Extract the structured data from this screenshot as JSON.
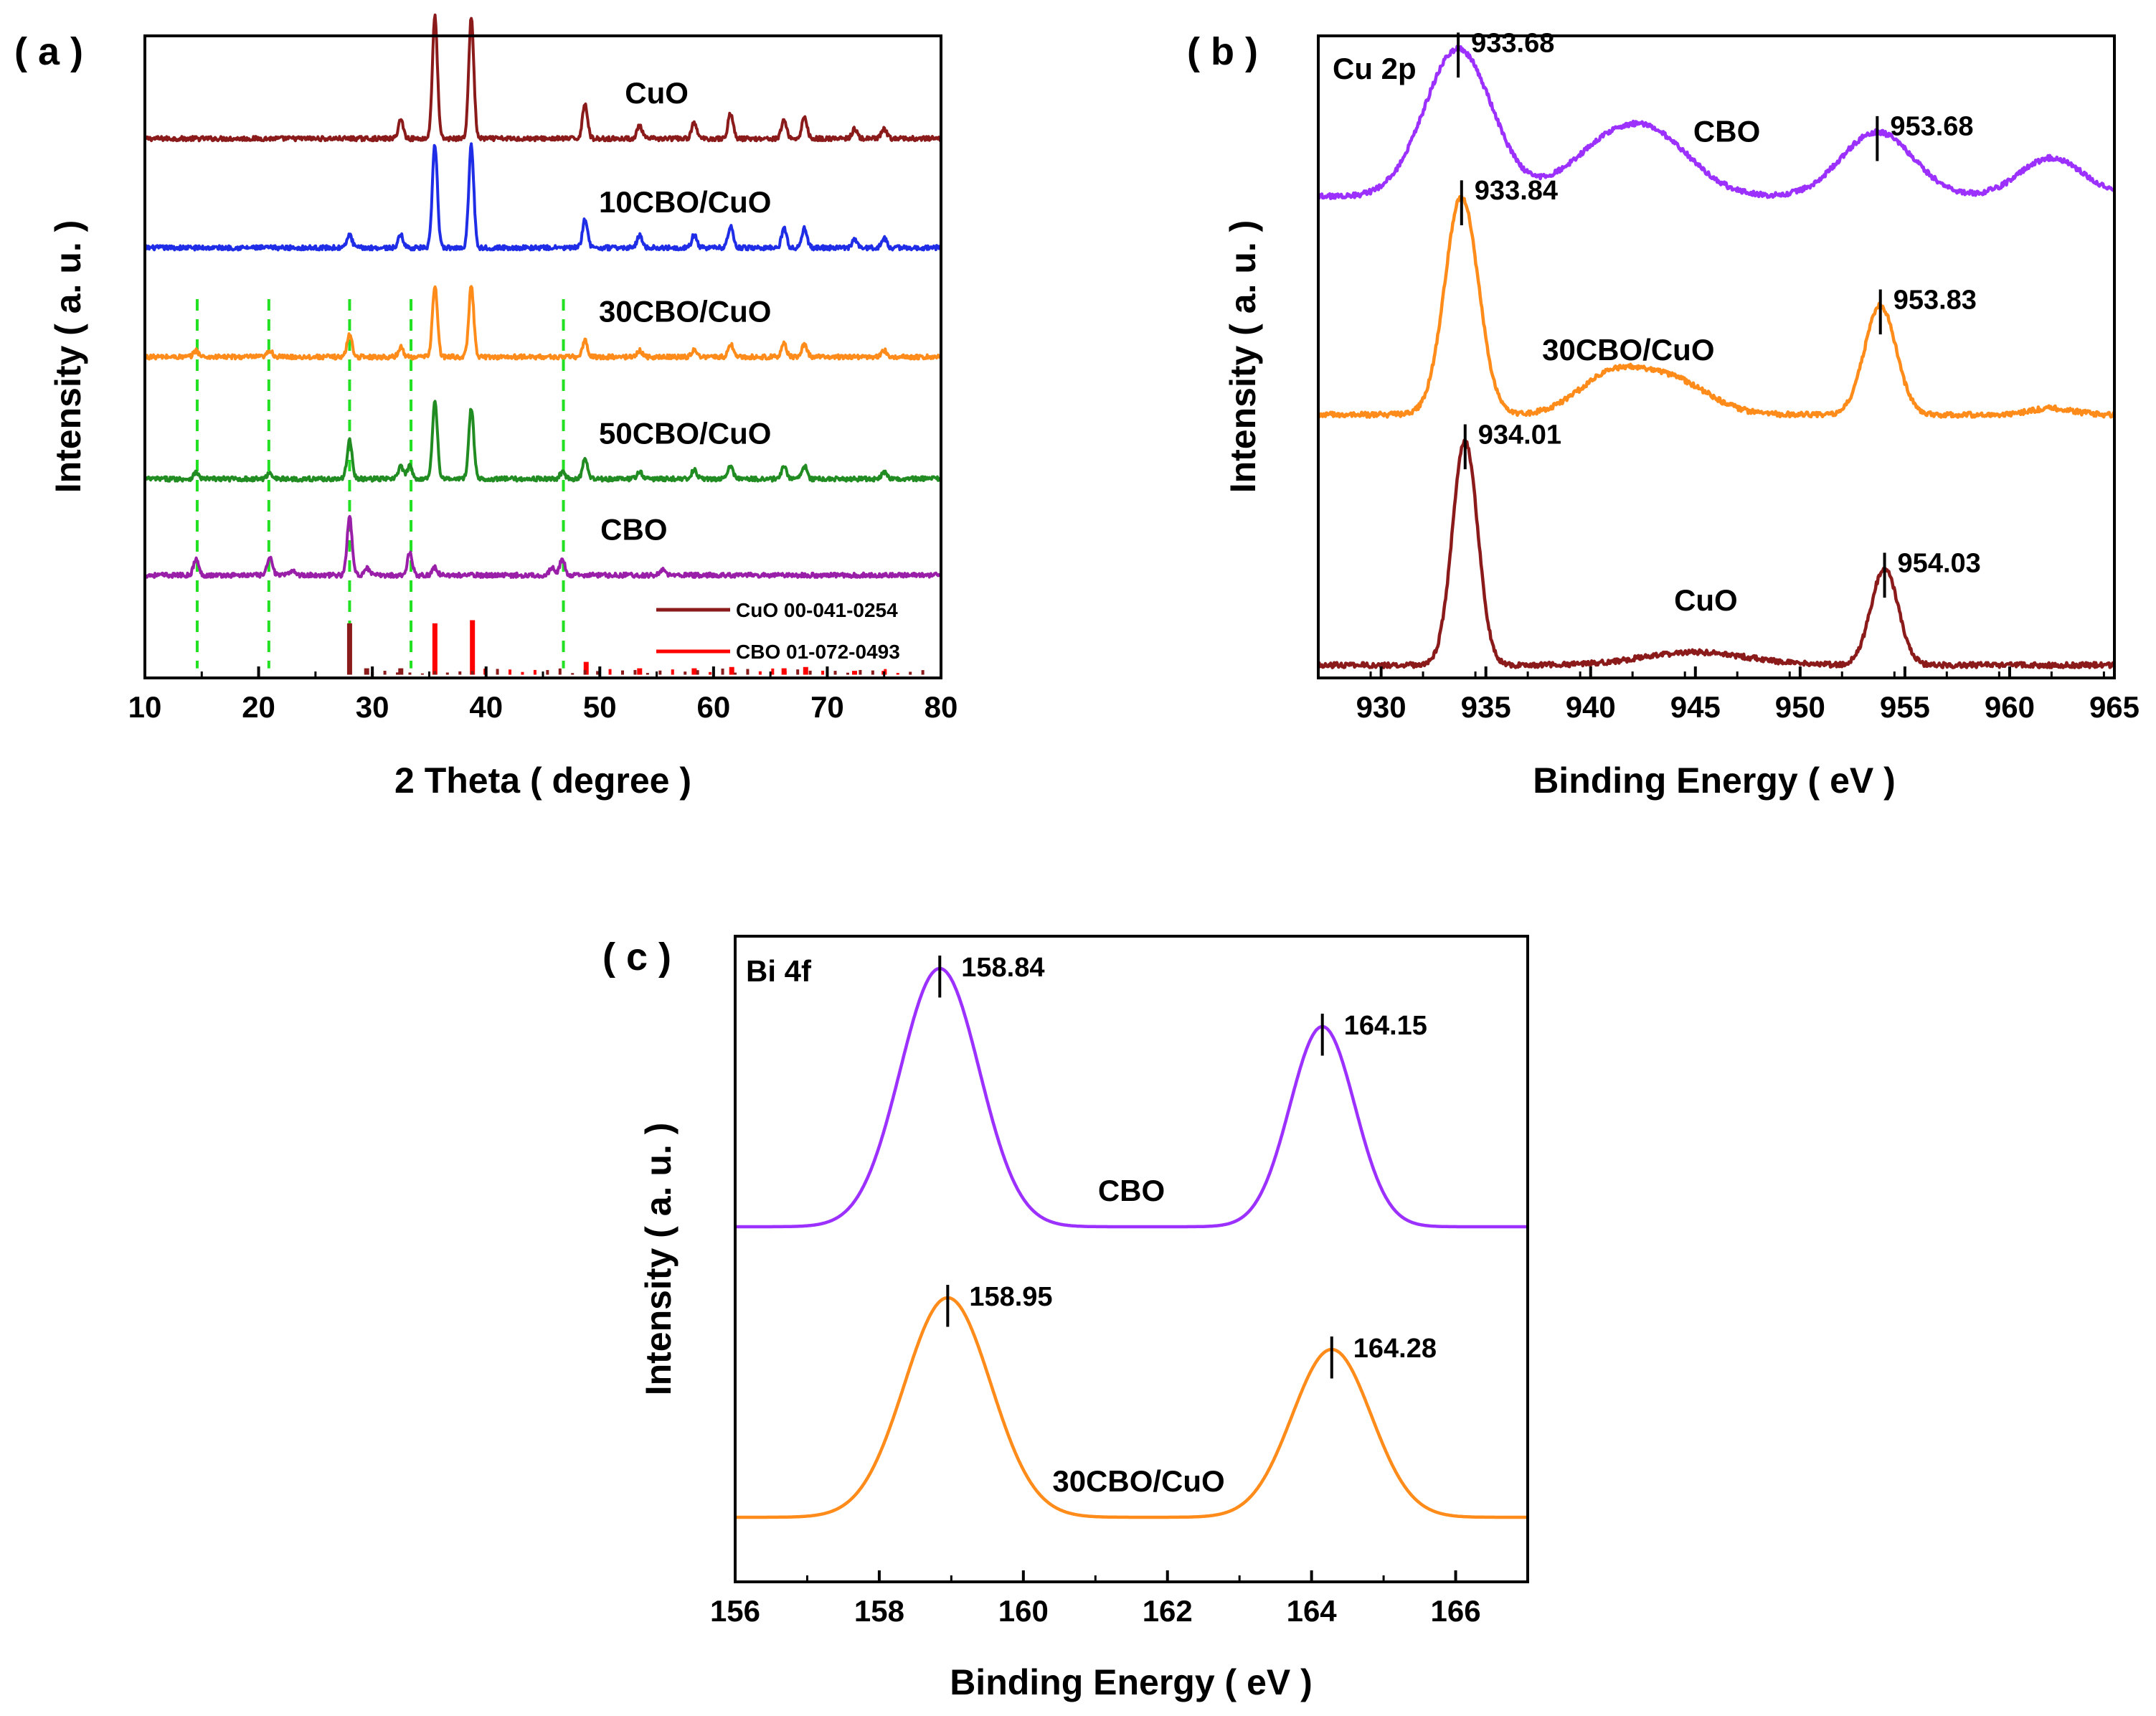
{
  "chart_data": [
    {
      "id": "a",
      "panel_label": "( a )",
      "type": "line",
      "subtype": "xrd_stacked",
      "xlabel": "2 Theta ( degree )",
      "ylabel": "Intensity ( a. u. )",
      "xlim": [
        10,
        80
      ],
      "xticks": [
        10,
        20,
        30,
        40,
        50,
        60,
        70,
        80
      ],
      "series": [
        {
          "name": "CuO",
          "color": "#8b1a1a",
          "offset": 0.84,
          "label_x": 55,
          "peaks": [
            [
              32.5,
              0.03
            ],
            [
              35.5,
              0.19
            ],
            [
              38.7,
              0.19
            ],
            [
              48.7,
              0.055
            ],
            [
              53.5,
              0.02
            ],
            [
              58.3,
              0.025
            ],
            [
              61.5,
              0.04
            ],
            [
              66.2,
              0.03
            ],
            [
              68.0,
              0.035
            ],
            [
              72.4,
              0.015
            ],
            [
              75.0,
              0.015
            ]
          ]
        },
        {
          "name": "10CBO/CuO",
          "color": "#1f2de6",
          "offset": 0.67,
          "label_x": 57.5,
          "peaks": [
            [
              28.0,
              0.02
            ],
            [
              32.5,
              0.02
            ],
            [
              35.5,
              0.16
            ],
            [
              38.7,
              0.16
            ],
            [
              48.7,
              0.045
            ],
            [
              53.5,
              0.02
            ],
            [
              58.3,
              0.02
            ],
            [
              61.5,
              0.035
            ],
            [
              66.2,
              0.03
            ],
            [
              68.0,
              0.03
            ],
            [
              72.4,
              0.012
            ],
            [
              75.0,
              0.015
            ]
          ]
        },
        {
          "name": "30CBO/CuO",
          "color": "#ff8c1a",
          "offset": 0.5,
          "label_x": 57.5,
          "peaks": [
            [
              14.5,
              0.01
            ],
            [
              21.0,
              0.01
            ],
            [
              28.0,
              0.035
            ],
            [
              32.5,
              0.015
            ],
            [
              35.5,
              0.11
            ],
            [
              38.7,
              0.11
            ],
            [
              48.7,
              0.025
            ],
            [
              53.5,
              0.01
            ],
            [
              58.3,
              0.012
            ],
            [
              61.5,
              0.02
            ],
            [
              66.2,
              0.02
            ],
            [
              68.0,
              0.02
            ],
            [
              75.0,
              0.01
            ]
          ]
        },
        {
          "name": "50CBO/CuO",
          "color": "#218c21",
          "offset": 0.31,
          "label_x": 57.5,
          "peaks": [
            [
              14.5,
              0.01
            ],
            [
              21.0,
              0.01
            ],
            [
              28.0,
              0.06
            ],
            [
              32.5,
              0.02
            ],
            [
              33.3,
              0.02
            ],
            [
              35.5,
              0.12
            ],
            [
              38.7,
              0.11
            ],
            [
              46.7,
              0.01
            ],
            [
              48.7,
              0.03
            ],
            [
              53.5,
              0.012
            ],
            [
              58.3,
              0.015
            ],
            [
              61.5,
              0.02
            ],
            [
              66.2,
              0.02
            ],
            [
              68.0,
              0.02
            ],
            [
              75.0,
              0.01
            ]
          ]
        },
        {
          "name": "CBO",
          "color": "#9a1fa8",
          "offset": 0.16,
          "label_x": 53,
          "peaks": [
            [
              14.5,
              0.025
            ],
            [
              21.0,
              0.03
            ],
            [
              23.0,
              0.008
            ],
            [
              28.0,
              0.09
            ],
            [
              29.5,
              0.012
            ],
            [
              33.3,
              0.035
            ],
            [
              35.5,
              0.012
            ],
            [
              45.8,
              0.012
            ],
            [
              46.7,
              0.025
            ],
            [
              55.5,
              0.008
            ]
          ]
        }
      ],
      "reference_lines_x": [
        14.6,
        20.9,
        28.0,
        33.4,
        46.8
      ],
      "reference_patterns": [
        {
          "name": "CuO 00-041-0254",
          "color": "#8b1a1a",
          "sticks": [
            [
              28.0,
              0.08
            ],
            [
              29.5,
              0.01
            ],
            [
              32.5,
              0.01
            ]
          ]
        },
        {
          "name": "CBO 01-072-0493",
          "color": "#ff0000",
          "sticks": [
            [
              35.5,
              0.08
            ],
            [
              38.8,
              0.085
            ],
            [
              48.8,
              0.02
            ],
            [
              53.5,
              0.01
            ],
            [
              58.3,
              0.01
            ],
            [
              61.6,
              0.012
            ],
            [
              66.2,
              0.01
            ],
            [
              68.1,
              0.012
            ],
            [
              72.4,
              0.006
            ],
            [
              75.0,
              0.006
            ]
          ]
        }
      ]
    },
    {
      "id": "b",
      "panel_label": "( b )",
      "type": "line",
      "subtype": "xps",
      "corner_label": "Cu 2p",
      "xlabel": "Binding Energy ( eV )",
      "ylabel": "Intensity ( a. u. )",
      "xlim": [
        927,
        965
      ],
      "xticks": [
        930,
        935,
        940,
        945,
        950,
        955,
        960,
        965
      ],
      "series": [
        {
          "name": "CBO",
          "color": "#9b30ff",
          "baseline": 0.75,
          "label_x": 946.5,
          "bands": [
            [
              933.68,
              0.23,
              1.6
            ],
            [
              941.0,
              0.08,
              2.0
            ],
            [
              943.5,
              0.06,
              1.8
            ],
            [
              953.68,
              0.1,
              1.7
            ],
            [
              962.0,
              0.06,
              1.5
            ]
          ],
          "peak_marks": [
            {
              "x": 933.68,
              "label": "933.68"
            },
            {
              "x": 953.68,
              "label": "953.68"
            }
          ]
        },
        {
          "name": "30CBO/CuO",
          "color": "#ff8c1a",
          "baseline": 0.41,
          "label_x": 941.8,
          "bands": [
            [
              933.84,
              0.34,
              0.8
            ],
            [
              941.0,
              0.06,
              1.6
            ],
            [
              944.0,
              0.05,
              1.7
            ],
            [
              953.83,
              0.17,
              0.75
            ],
            [
              962.0,
              0.01,
              1.0
            ]
          ],
          "peak_marks": [
            {
              "x": 933.84,
              "label": "933.84"
            },
            {
              "x": 953.83,
              "label": "953.83"
            }
          ]
        },
        {
          "name": "CuO",
          "color": "#8b1a1a",
          "baseline": 0.02,
          "label_x": 945.5,
          "bands": [
            [
              934.01,
              0.35,
              0.6
            ],
            [
              945.0,
              0.02,
              2.5
            ],
            [
              954.03,
              0.15,
              0.65
            ]
          ],
          "peak_marks": [
            {
              "x": 934.01,
              "label": "934.01"
            },
            {
              "x": 954.03,
              "label": "954.03"
            }
          ]
        }
      ]
    },
    {
      "id": "c",
      "panel_label": "( c )",
      "type": "line",
      "subtype": "xps",
      "corner_label": "Bi 4f",
      "xlabel": "Binding Energy ( eV )",
      "ylabel": "Intensity ( a. u. )",
      "xlim": [
        156,
        167
      ],
      "xticks": [
        156,
        158,
        160,
        162,
        164,
        166
      ],
      "series": [
        {
          "name": "CBO",
          "color": "#9b30ff",
          "baseline": 0.55,
          "label_x": 161.5,
          "bands": [
            [
              158.84,
              0.4,
              0.55
            ],
            [
              164.15,
              0.31,
              0.45
            ]
          ],
          "peak_marks": [
            {
              "x": 158.84,
              "label": "158.84"
            },
            {
              "x": 164.15,
              "label": "164.15"
            }
          ]
        },
        {
          "name": "30CBO/CuO",
          "color": "#ff8c1a",
          "baseline": 0.1,
          "label_x": 161.6,
          "bands": [
            [
              158.95,
              0.34,
              0.6
            ],
            [
              164.28,
              0.26,
              0.55
            ]
          ],
          "peak_marks": [
            {
              "x": 158.95,
              "label": "158.95"
            },
            {
              "x": 164.28,
              "label": "164.28"
            }
          ]
        }
      ]
    }
  ]
}
